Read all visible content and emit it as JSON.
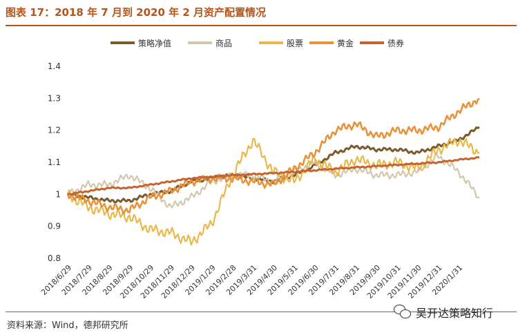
{
  "title": "图表 17：2018 年 7 月到 2020 年 2 月资产配置情况",
  "source": "资料来源：Wind，德邦研究所",
  "watermark": "吴开达策略知行",
  "watermark_icon": "wechat-icon",
  "chart_data": {
    "type": "line",
    "title": "",
    "xlabel": "",
    "ylabel": "",
    "ylim": [
      0.8,
      1.4
    ],
    "yticks": [
      "0.8",
      "0.9",
      "1",
      "1.1",
      "1.2",
      "1.3",
      "1.4"
    ],
    "grid": false,
    "legend_position": "top",
    "x": [
      "2018/6/29",
      "2018/7/29",
      "2018/8/29",
      "2018/9/29",
      "2018/10/29",
      "2018/11/29",
      "2018/12/29",
      "2019/1/29",
      "2019/2/28",
      "2019/3/31",
      "2019/4/30",
      "2019/5/31",
      "2019/6/30",
      "2019/7/31",
      "2019/8/31",
      "2019/9/30",
      "2019/10/31",
      "2019/11/30",
      "2019/12/31",
      "2020/1/31",
      "2020/2/29"
    ],
    "x_tick_labels": [
      "2018/6/29",
      "2018/7/29",
      "2018/8/29",
      "2018/9/29",
      "2018/10/29",
      "2018/11/29",
      "2018/12/29",
      "2019/1/29",
      "2019/2/28",
      "2019/3/31",
      "2019/4/30",
      "2019/5/31",
      "2019/6/30",
      "2019/7/31",
      "2019/8/31",
      "2019/9/30",
      "2019/10/31",
      "2019/11/30",
      "2019/12/31",
      "2020/1/31"
    ],
    "series": [
      {
        "name": "策略净值",
        "color": "#7b5a2e",
        "values": [
          1.0,
          0.99,
          0.98,
          0.98,
          1.0,
          1.01,
          1.04,
          1.05,
          1.06,
          1.05,
          1.04,
          1.06,
          1.09,
          1.13,
          1.15,
          1.14,
          1.14,
          1.13,
          1.15,
          1.17,
          1.21
        ]
      },
      {
        "name": "商品",
        "color": "#d4c6aa",
        "values": [
          1.0,
          1.03,
          1.03,
          1.06,
          1.02,
          0.96,
          0.99,
          1.04,
          1.06,
          1.06,
          1.04,
          1.07,
          1.1,
          1.06,
          1.08,
          1.06,
          1.06,
          1.07,
          1.12,
          1.07,
          0.99
        ]
      },
      {
        "name": "股票",
        "color": "#e8b84a",
        "values": [
          1.0,
          0.96,
          0.94,
          0.93,
          0.89,
          0.88,
          0.85,
          0.91,
          1.06,
          1.17,
          1.07,
          1.04,
          1.11,
          1.07,
          1.11,
          1.09,
          1.1,
          1.08,
          1.14,
          1.17,
          1.13
        ]
      },
      {
        "name": "黄金",
        "color": "#e8923a",
        "values": [
          1.0,
          0.98,
          0.96,
          0.95,
          0.99,
          1.01,
          1.04,
          1.05,
          1.05,
          1.04,
          1.03,
          1.08,
          1.13,
          1.2,
          1.22,
          1.18,
          1.2,
          1.2,
          1.21,
          1.26,
          1.3
        ]
      },
      {
        "name": "债券",
        "color": "#c8622c",
        "values": [
          1.0,
          1.01,
          1.02,
          1.02,
          1.03,
          1.04,
          1.05,
          1.055,
          1.06,
          1.063,
          1.066,
          1.07,
          1.075,
          1.08,
          1.084,
          1.088,
          1.092,
          1.096,
          1.1,
          1.108,
          1.115
        ]
      }
    ]
  }
}
